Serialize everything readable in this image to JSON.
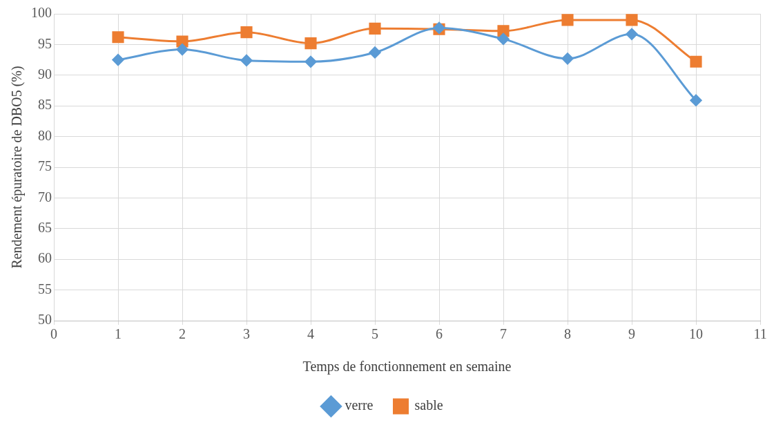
{
  "chart_data": {
    "type": "line",
    "xlabel": "Temps de fonctionnement en semaine",
    "ylabel": "Rendement épuratoire de DBO5 (%)",
    "x": [
      1,
      2,
      3,
      4,
      5,
      6,
      7,
      8,
      9,
      10
    ],
    "series": [
      {
        "name": "verre",
        "color": "#5b9bd5",
        "marker": "diamond",
        "values": [
          92.5,
          94.2,
          92.4,
          92.2,
          93.7,
          97.7,
          95.9,
          92.7,
          96.7,
          85.9
        ]
      },
      {
        "name": "sable",
        "color": "#ed7d31",
        "marker": "square",
        "values": [
          96.2,
          95.5,
          97.0,
          95.2,
          97.6,
          97.5,
          97.2,
          99.0,
          99.0,
          92.2
        ]
      }
    ],
    "xlim": [
      0,
      11
    ],
    "xticks": [
      0,
      1,
      2,
      3,
      4,
      5,
      6,
      7,
      8,
      9,
      10,
      11
    ],
    "ylim": [
      50,
      100
    ],
    "yticks": [
      50,
      55,
      60,
      65,
      70,
      75,
      80,
      85,
      90,
      95,
      100
    ],
    "grid": true,
    "legend": "bottom",
    "line_style": "solid"
  }
}
